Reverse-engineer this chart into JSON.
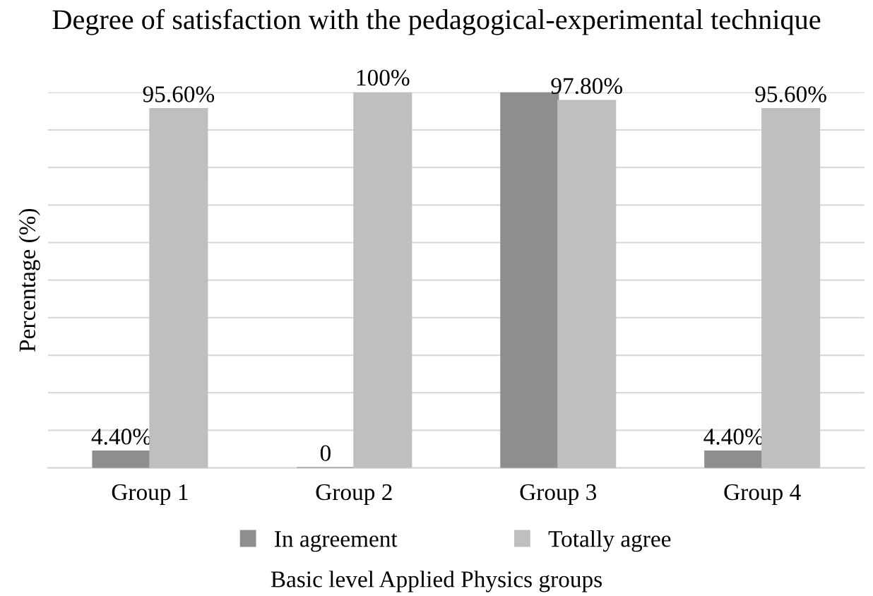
{
  "chart_data": {
    "type": "bar",
    "title": "Degree of satisfaction with the pedagogical-experimental technique",
    "xlabel": "Basic level Applied Physics groups",
    "ylabel": "Percentage (%)",
    "categories": [
      "Group 1",
      "Group 2",
      "Group 3",
      "Group 4"
    ],
    "series": [
      {
        "name": "In agreement",
        "color": "#8e8e8e",
        "values": [
          4.4,
          0,
          100,
          4.4
        ],
        "value_labels": [
          "4.40%",
          "0",
          null,
          "4.40%"
        ]
      },
      {
        "name": "Totally agree",
        "color": "#bfbfbf",
        "values": [
          95.6,
          100,
          97.8,
          95.6
        ],
        "value_labels": [
          "95.60%",
          "100%",
          "97.80%",
          "95.60%"
        ]
      }
    ],
    "ylim": [
      0,
      100
    ],
    "yticks": [
      {
        "value": 0,
        "label": null
      },
      {
        "value": 10,
        "label": null
      },
      {
        "value": 20,
        "label": null
      },
      {
        "value": 30,
        "label": null
      },
      {
        "value": 40,
        "label": null
      },
      {
        "value": 50,
        "label": null
      },
      {
        "value": 60,
        "label": null
      },
      {
        "value": 70,
        "label": null
      },
      {
        "value": 80,
        "label": null
      },
      {
        "value": 90,
        "label": null
      },
      {
        "value": 100,
        "label": null
      }
    ],
    "tick_labels": "x",
    "grid": "y",
    "legend": "bottom"
  }
}
